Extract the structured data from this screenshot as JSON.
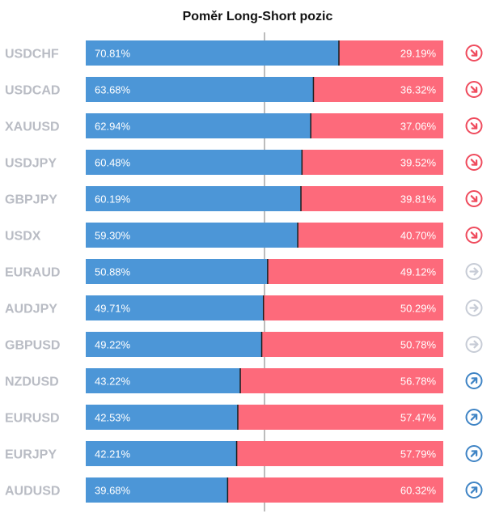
{
  "chart_data": {
    "type": "bar",
    "stacked": true,
    "orientation": "horizontal",
    "title": "Poměr Long-Short pozic",
    "xlim": [
      0,
      100
    ],
    "midline": 50,
    "colors": {
      "long": "#4c96d7",
      "short": "#fd6a7b",
      "symbol": "#b9bcc4"
    },
    "rows": [
      {
        "symbol": "USDCHF",
        "long": 70.81,
        "short": 29.19,
        "long_label": "70.81%",
        "short_label": "29.19%",
        "trend": "down"
      },
      {
        "symbol": "USDCAD",
        "long": 63.68,
        "short": 36.32,
        "long_label": "63.68%",
        "short_label": "36.32%",
        "trend": "down"
      },
      {
        "symbol": "XAUUSD",
        "long": 62.94,
        "short": 37.06,
        "long_label": "62.94%",
        "short_label": "37.06%",
        "trend": "down"
      },
      {
        "symbol": "USDJPY",
        "long": 60.48,
        "short": 39.52,
        "long_label": "60.48%",
        "short_label": "39.52%",
        "trend": "down"
      },
      {
        "symbol": "GBPJPY",
        "long": 60.19,
        "short": 39.81,
        "long_label": "60.19%",
        "short_label": "39.81%",
        "trend": "down"
      },
      {
        "symbol": "USDX",
        "long": 59.3,
        "short": 40.7,
        "long_label": "59.30%",
        "short_label": "40.70%",
        "trend": "down"
      },
      {
        "symbol": "EURAUD",
        "long": 50.88,
        "short": 49.12,
        "long_label": "50.88%",
        "short_label": "49.12%",
        "trend": "neutral"
      },
      {
        "symbol": "AUDJPY",
        "long": 49.71,
        "short": 50.29,
        "long_label": "49.71%",
        "short_label": "50.29%",
        "trend": "neutral"
      },
      {
        "symbol": "GBPUSD",
        "long": 49.22,
        "short": 50.78,
        "long_label": "49.22%",
        "short_label": "50.78%",
        "trend": "neutral"
      },
      {
        "symbol": "NZDUSD",
        "long": 43.22,
        "short": 56.78,
        "long_label": "43.22%",
        "short_label": "56.78%",
        "trend": "up"
      },
      {
        "symbol": "EURUSD",
        "long": 42.53,
        "short": 57.47,
        "long_label": "42.53%",
        "short_label": "57.47%",
        "trend": "up"
      },
      {
        "symbol": "EURJPY",
        "long": 42.21,
        "short": 57.79,
        "long_label": "42.21%",
        "short_label": "57.79%",
        "trend": "up"
      },
      {
        "symbol": "AUDUSD",
        "long": 39.68,
        "short": 60.32,
        "long_label": "39.68%",
        "short_label": "60.32%",
        "trend": "up"
      }
    ],
    "trend_icons": {
      "down": {
        "icon": "arrow-down-right-icon",
        "color": "#ef4b5d"
      },
      "neutral": {
        "icon": "arrow-right-icon",
        "color": "#c7ccd6"
      },
      "up": {
        "icon": "arrow-up-right-icon",
        "color": "#3f84c5"
      }
    }
  }
}
